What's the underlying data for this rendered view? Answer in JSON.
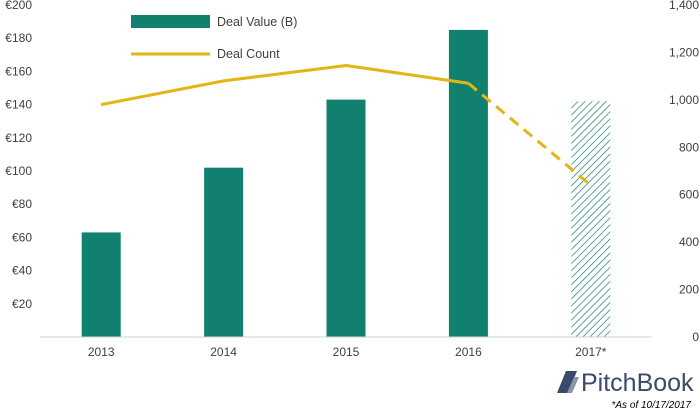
{
  "chart_data": {
    "type": "bar",
    "categories": [
      "2013",
      "2014",
      "2015",
      "2016",
      "2017*"
    ],
    "series": [
      {
        "name": "Deal Value (B)",
        "type": "bar",
        "axis": "left",
        "values": [
          63,
          102,
          143,
          185,
          142
        ],
        "projected_last": true,
        "color": "#12806f"
      },
      {
        "name": "Deal Count",
        "type": "line",
        "axis": "right",
        "values": [
          980,
          1080,
          1145,
          1070,
          640
        ],
        "projected_last": true,
        "color": "#e2b614"
      }
    ],
    "y_left": {
      "ylim": [
        0,
        200
      ],
      "ticks": [
        20,
        40,
        60,
        80,
        100,
        120,
        140,
        160,
        180,
        200
      ],
      "tick_labels": [
        "€20",
        "€40",
        "€60",
        "€80",
        "€100",
        "€120",
        "€140",
        "€160",
        "€180",
        "€200"
      ]
    },
    "y_right": {
      "ylim": [
        0,
        1400
      ],
      "ticks": [
        0,
        200,
        400,
        600,
        800,
        1000,
        1200,
        1400
      ],
      "tick_labels": [
        "0",
        "200",
        "400",
        "600",
        "800",
        "1,000",
        "1,200",
        "1,400"
      ]
    },
    "legend": {
      "position": "top-left",
      "items": [
        "Deal Value (B)",
        "Deal Count"
      ]
    },
    "grid": false
  },
  "branding": {
    "logo_text": "PitchBook",
    "footnote": "*As of 10/17/2017"
  }
}
